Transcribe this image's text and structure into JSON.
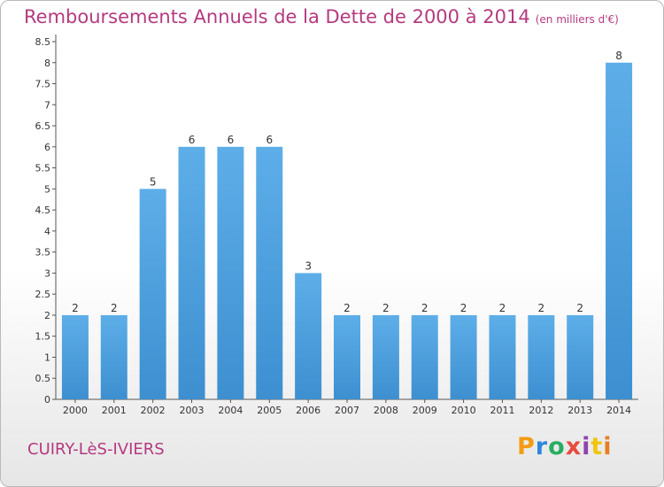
{
  "header": {
    "title": "Remboursements Annuels de la Dette de 2000 à 2014",
    "subtitle": "(en milliers d'€)"
  },
  "footer": {
    "commune": "CUIRY-LèS-IVIERS",
    "logo": "Proxiti",
    "logo_colors": [
      "#f39c12",
      "#2e86de",
      "#27ae60",
      "#e74c3c",
      "#8e44ad",
      "#f1c40f",
      "#e67e22"
    ]
  },
  "chart_data": {
    "type": "bar",
    "categories": [
      "2000",
      "2001",
      "2002",
      "2003",
      "2004",
      "2005",
      "2006",
      "2007",
      "2008",
      "2009",
      "2010",
      "2011",
      "2012",
      "2013",
      "2014"
    ],
    "values": [
      2,
      2,
      5,
      6,
      6,
      6,
      3,
      2,
      2,
      2,
      2,
      2,
      2,
      2,
      8
    ],
    "data_labels": [
      "2",
      "2",
      "5",
      "6",
      "6",
      "6",
      "3",
      "2",
      "2",
      "2",
      "2",
      "2",
      "2",
      "2",
      "8"
    ],
    "yticks": [
      "0",
      "0.5",
      "1",
      "1.5",
      "2",
      "2.5",
      "3",
      "3.5",
      "4",
      "4.5",
      "5",
      "5.5",
      "6",
      "6.5",
      "7",
      "7.5",
      "8",
      "8.5"
    ],
    "ylim": [
      0,
      8.5
    ],
    "grid": false,
    "bar_color": "#3d8fd0",
    "bar_color_light": "#5daee8",
    "text_color": "#b43a7f"
  }
}
